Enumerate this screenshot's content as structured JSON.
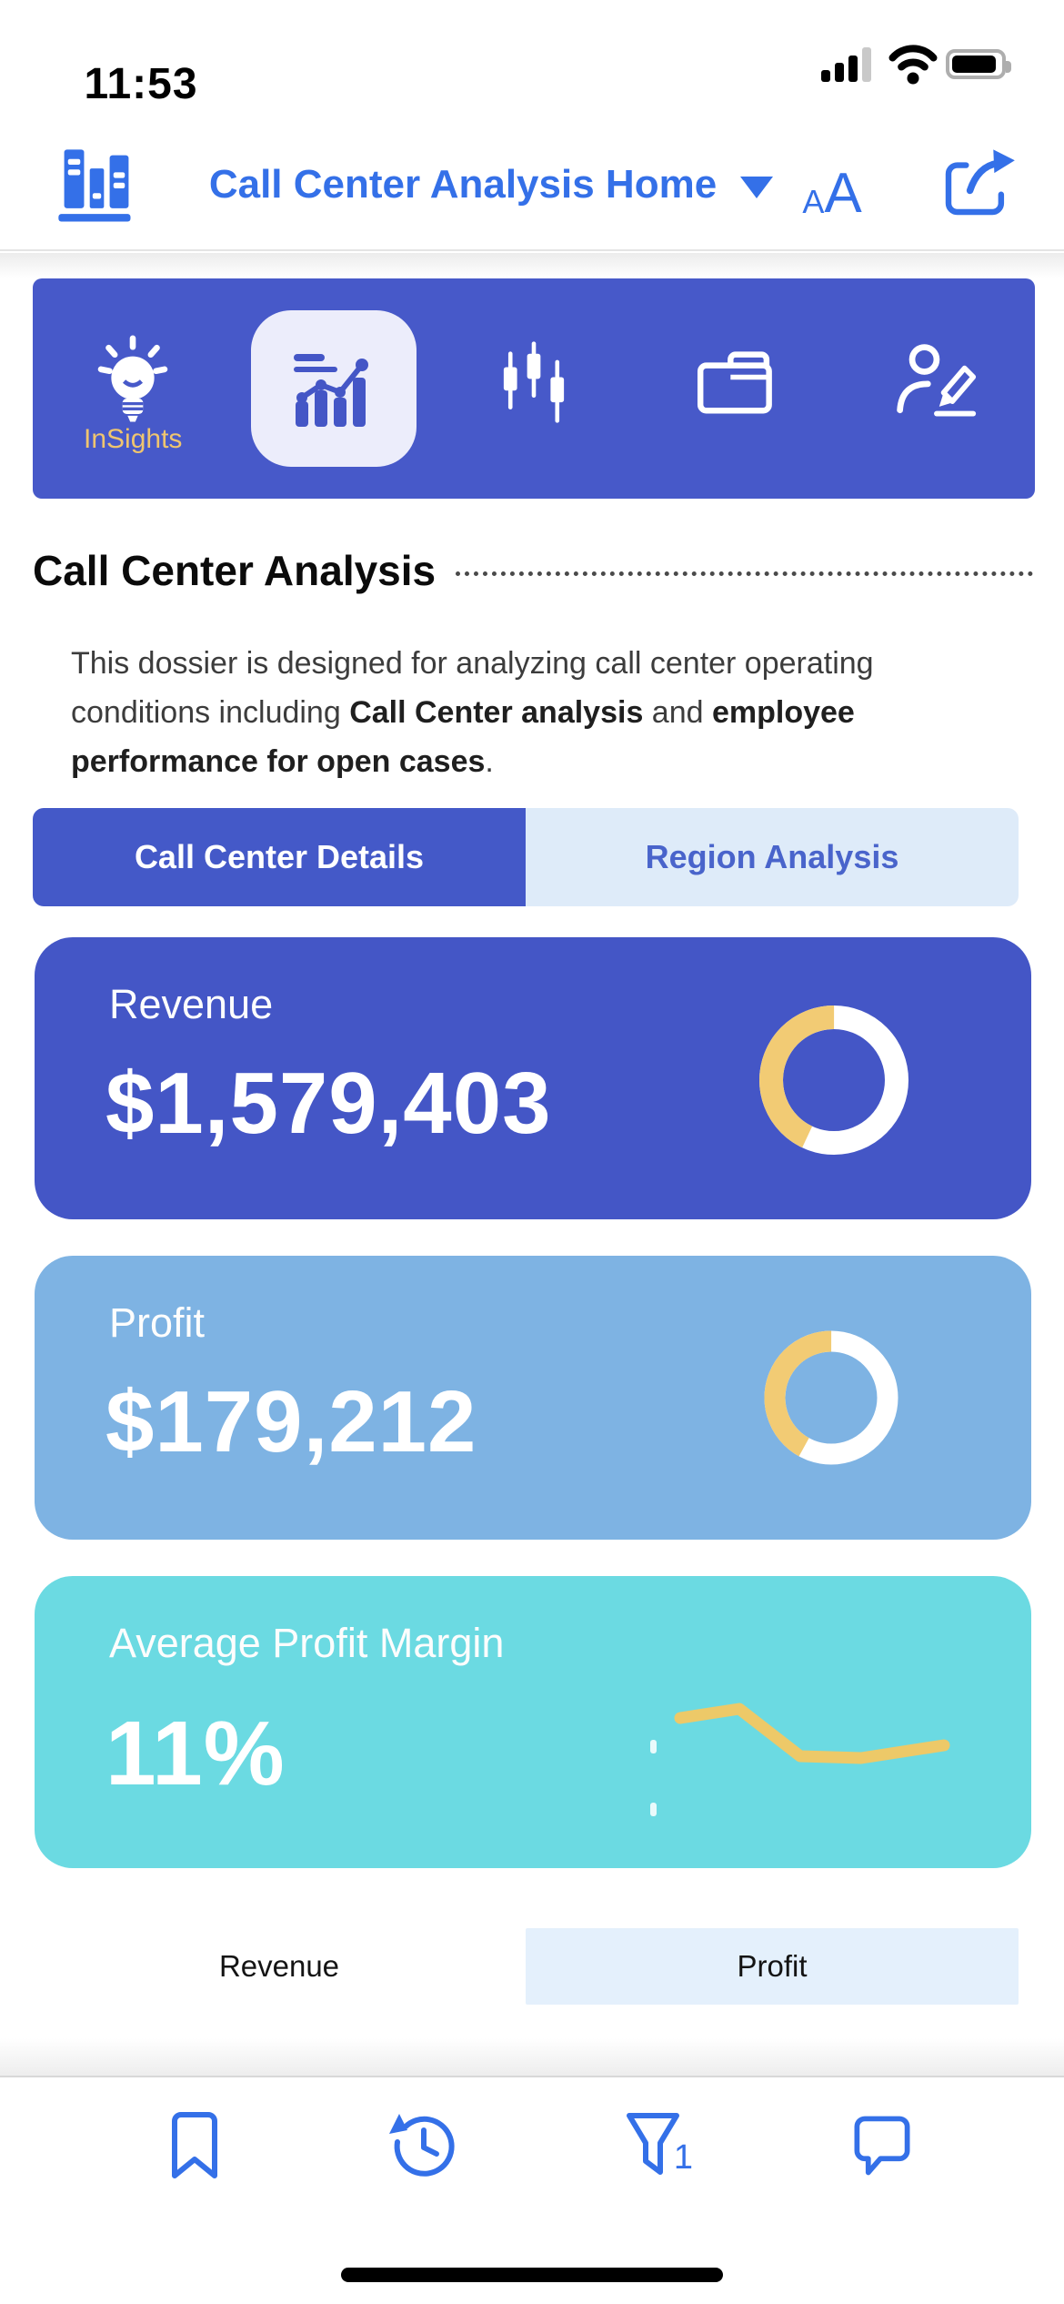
{
  "status_bar": {
    "time": "11:53"
  },
  "header": {
    "title": "Call Center Analysis Home",
    "text_size_small": "A",
    "text_size_large": "A"
  },
  "ribbon": {
    "items": [
      {
        "label": "InSights",
        "icon": "lightbulb-icon",
        "selected": false
      },
      {
        "label": "",
        "icon": "bar-line-chart-icon",
        "selected": true
      },
      {
        "label": "",
        "icon": "candlestick-chart-icon",
        "selected": false
      },
      {
        "label": "",
        "icon": "folder-icon",
        "selected": false
      },
      {
        "label": "",
        "icon": "user-edit-icon",
        "selected": false
      }
    ]
  },
  "page": {
    "title": "Call Center Analysis",
    "description_segments": [
      {
        "text": "This dossier is designed for analyzing call center operating conditions including ",
        "bold": false
      },
      {
        "text": "Call Center analysis",
        "bold": true
      },
      {
        "text": " and ",
        "bold": false
      },
      {
        "text": "employee performance for open cases",
        "bold": true
      },
      {
        "text": ".",
        "bold": false
      }
    ]
  },
  "tabs": [
    {
      "label": "Call Center Details",
      "selected": true
    },
    {
      "label": "Region Analysis",
      "selected": false
    }
  ],
  "cards": [
    {
      "label": "Revenue",
      "value": "$1,579,403"
    },
    {
      "label": "Profit",
      "value": "$179,212"
    },
    {
      "label": "Average Profit Margin",
      "value": "11%"
    }
  ],
  "legend": [
    {
      "label": "Revenue",
      "selected": false
    },
    {
      "label": "Profit",
      "selected": true
    }
  ],
  "footer": {
    "filter_badge": "1"
  },
  "colors": {
    "accent_blue": "#3470E8",
    "ribbon_blue": "#4759C9",
    "revenue_card_blue": "#4456C6",
    "profit_card_blue": "#7EB3E3",
    "margin_card_teal": "#6BDAE2",
    "insights_gold": "#EFC56F",
    "donut_yellow": "#F2CB74",
    "sparkline_yellow": "#EDC968",
    "tab_selected_blue": "#4459C8",
    "tab_unselected_bg": "#DEEBF9",
    "legend_selected_bg": "#E4F0FC"
  },
  "chart_data": [
    {
      "type": "pie",
      "donut": true,
      "title": "Revenue",
      "slices": [
        {
          "label": "highlighted share",
          "percent": 43,
          "color": "#F2CB74"
        },
        {
          "label": "remainder",
          "percent": 57,
          "color": "#FFFFFF"
        }
      ]
    },
    {
      "type": "pie",
      "donut": true,
      "title": "Profit",
      "slices": [
        {
          "label": "highlighted share",
          "percent": 42,
          "color": "#F2CB74"
        },
        {
          "label": "remainder",
          "percent": 58,
          "color": "#FFFFFF"
        }
      ]
    },
    {
      "type": "line",
      "title": "Average Profit Margin trend",
      "color": "#EDC968",
      "points": [
        [
          48,
          38
        ],
        [
          113,
          28
        ],
        [
          180,
          80
        ],
        [
          247,
          82
        ],
        [
          338,
          68
        ]
      ],
      "x_range": [
        0,
        350
      ],
      "y_range": [
        0,
        100
      ]
    }
  ]
}
